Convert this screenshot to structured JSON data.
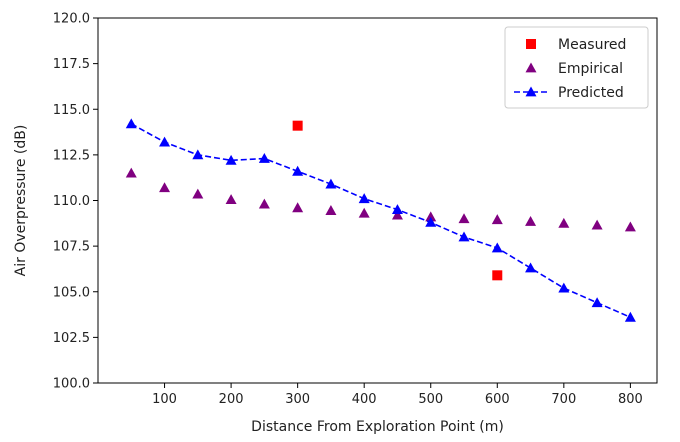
{
  "chart_data": {
    "type": "scatter",
    "title": "",
    "xlabel": "Distance From Exploration Point (m)",
    "ylabel": "Air Overpressure (dB)",
    "xlim": [
      0,
      840
    ],
    "ylim": [
      100.0,
      120.0
    ],
    "xticks": [
      100,
      200,
      300,
      400,
      500,
      600,
      700,
      800
    ],
    "xtick_labels": [
      "100",
      "200",
      "300",
      "400",
      "500",
      "600",
      "700",
      "800"
    ],
    "yticks": [
      100.0,
      102.5,
      105.0,
      107.5,
      110.0,
      112.5,
      115.0,
      117.5,
      120.0
    ],
    "ytick_labels": [
      "100.0",
      "102.5",
      "105.0",
      "107.5",
      "110.0",
      "112.5",
      "115.0",
      "117.5",
      "120.0"
    ],
    "legend_position": "top-right",
    "series": [
      {
        "name": "Measured",
        "marker": "square",
        "color": "#ff0000",
        "line": false,
        "x": [
          300,
          600
        ],
        "y": [
          114.1,
          105.9
        ]
      },
      {
        "name": "Empirical",
        "marker": "triangle",
        "color": "#800080",
        "line": false,
        "x": [
          50,
          100,
          150,
          200,
          250,
          300,
          350,
          400,
          450,
          500,
          550,
          600,
          650,
          700,
          750,
          800
        ],
        "y": [
          111.5,
          110.7,
          110.35,
          110.05,
          109.8,
          109.6,
          109.45,
          109.3,
          109.2,
          109.1,
          109.0,
          108.95,
          108.85,
          108.75,
          108.65,
          108.55
        ]
      },
      {
        "name": "Predicted",
        "marker": "triangle",
        "color": "#0000ff",
        "line": true,
        "dashed": true,
        "x": [
          50,
          100,
          150,
          200,
          250,
          300,
          350,
          400,
          450,
          500,
          550,
          600,
          650,
          700,
          750,
          800
        ],
        "y": [
          114.2,
          113.2,
          112.5,
          112.2,
          112.3,
          111.6,
          110.9,
          110.1,
          109.5,
          108.8,
          108.0,
          107.4,
          106.3,
          105.2,
          104.4,
          103.6
        ]
      }
    ]
  }
}
